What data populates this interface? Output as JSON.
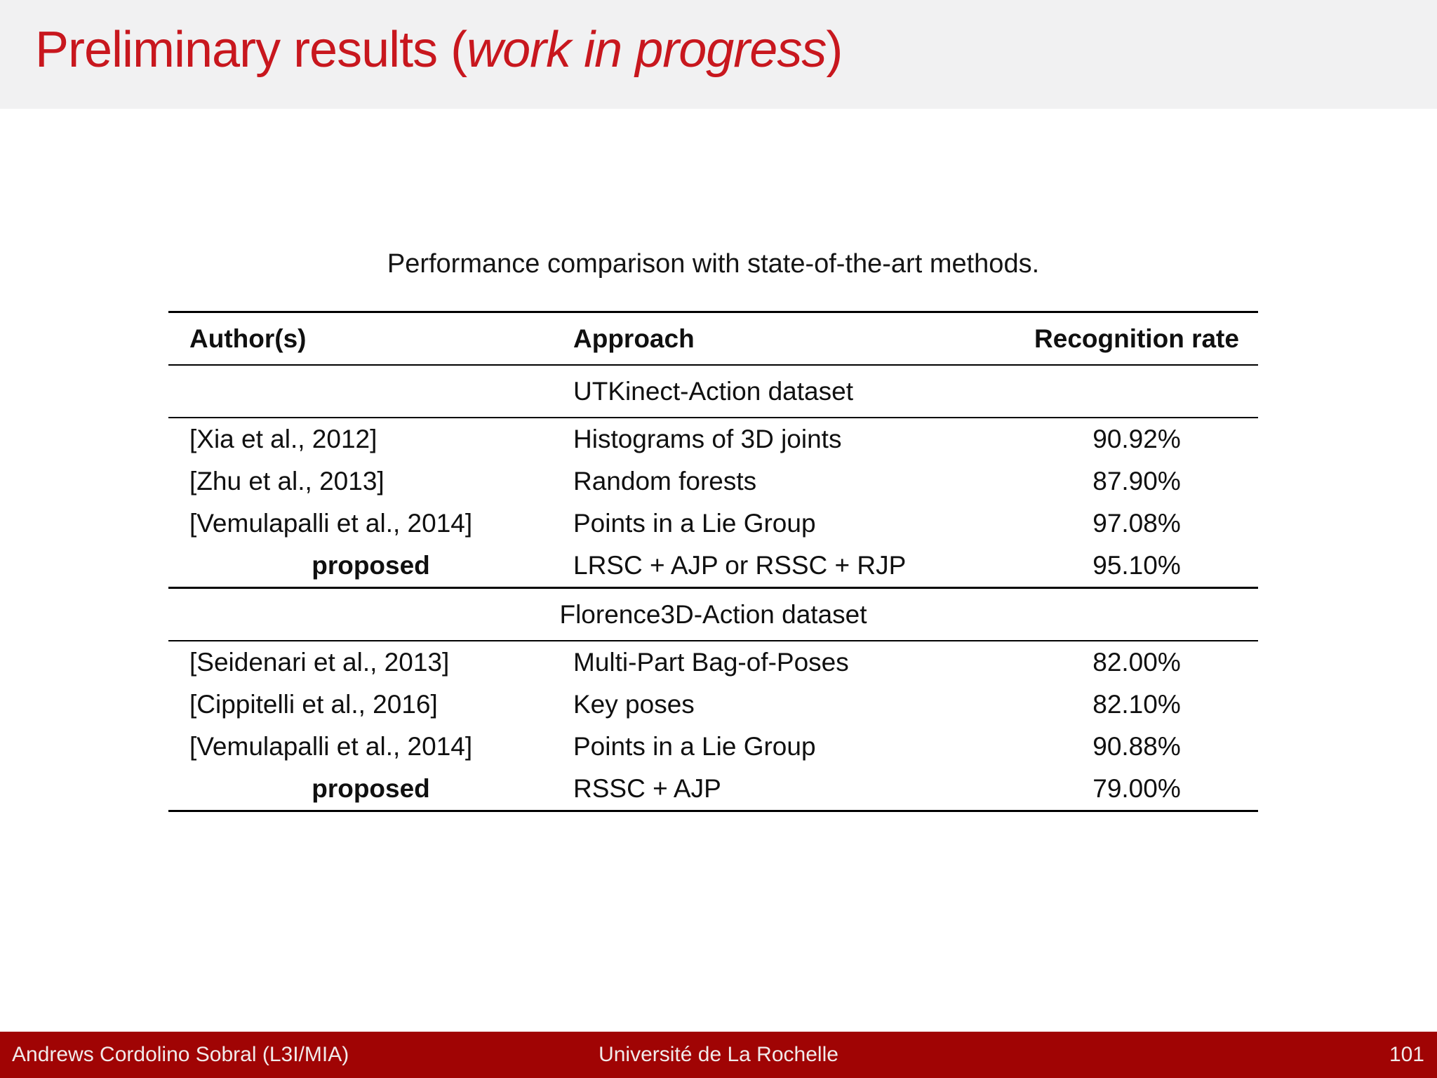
{
  "slide": {
    "title": {
      "prefix": "Preliminary results (",
      "emphasis": "work in progress",
      "suffix": ")"
    }
  },
  "table": {
    "caption": "Performance comparison with state-of-the-art methods.",
    "columns": {
      "author": "Author(s)",
      "approach": "Approach",
      "rate": "Recognition rate"
    },
    "sections": [
      {
        "name": "UTKinect-Action dataset",
        "rows": [
          {
            "author": "[Xia et al., 2012]",
            "approach": "Histograms of 3D joints",
            "rate": "90.92%"
          },
          {
            "author": "[Zhu et al., 2013]",
            "approach": "Random forests",
            "rate": "87.90%"
          },
          {
            "author": "[Vemulapalli et al., 2014]",
            "approach": "Points in a Lie Group",
            "rate": "97.08%"
          },
          {
            "author": "proposed",
            "approach": "LRSC + AJP or RSSC + RJP",
            "rate": "95.10%"
          }
        ]
      },
      {
        "name": "Florence3D-Action dataset",
        "rows": [
          {
            "author": "[Seidenari et al., 2013]",
            "approach": "Multi-Part Bag-of-Poses",
            "rate": "82.00%"
          },
          {
            "author": "[Cippitelli et al., 2016]",
            "approach": "Key poses",
            "rate": "82.10%"
          },
          {
            "author": "[Vemulapalli et al., 2014]",
            "approach": "Points in a Lie Group",
            "rate": "90.88%"
          },
          {
            "author": "proposed",
            "approach": "RSSC + AJP",
            "rate": "79.00%"
          }
        ]
      }
    ]
  },
  "footer": {
    "author": "Andrews Cordolino Sobral (L3I/MIA)",
    "institute": "Université de La Rochelle",
    "page": "101"
  },
  "colors": {
    "title_red": "#c8171e",
    "footer_red": "#a00404",
    "titlebar_bg": "#f1f1f2"
  }
}
